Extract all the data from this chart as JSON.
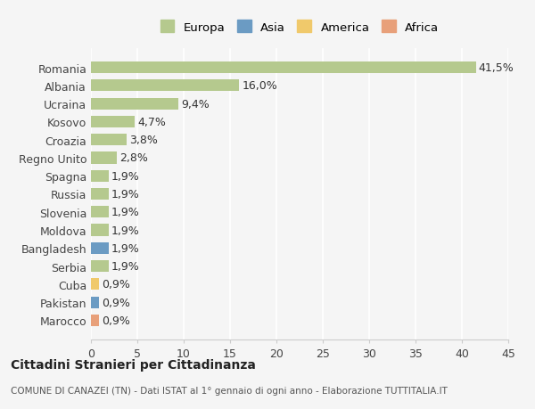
{
  "countries": [
    "Romania",
    "Albania",
    "Ucraina",
    "Kosovo",
    "Croazia",
    "Regno Unito",
    "Spagna",
    "Russia",
    "Slovenia",
    "Moldova",
    "Bangladesh",
    "Serbia",
    "Cuba",
    "Pakistan",
    "Marocco"
  ],
  "values": [
    41.5,
    16.0,
    9.4,
    4.7,
    3.8,
    2.8,
    1.9,
    1.9,
    1.9,
    1.9,
    1.9,
    1.9,
    0.9,
    0.9,
    0.9
  ],
  "continents": [
    "Europa",
    "Europa",
    "Europa",
    "Europa",
    "Europa",
    "Europa",
    "Europa",
    "Europa",
    "Europa",
    "Europa",
    "Asia",
    "Europa",
    "America",
    "Asia",
    "Africa"
  ],
  "continent_colors": {
    "Europa": "#b5c98e",
    "Asia": "#6b9bc3",
    "America": "#f0c96b",
    "Africa": "#e8a07a"
  },
  "labels": [
    "41,5%",
    "16,0%",
    "9,4%",
    "4,7%",
    "3,8%",
    "2,8%",
    "1,9%",
    "1,9%",
    "1,9%",
    "1,9%",
    "1,9%",
    "1,9%",
    "0,9%",
    "0,9%",
    "0,9%"
  ],
  "xlim": [
    0,
    45
  ],
  "xticks": [
    0,
    5,
    10,
    15,
    20,
    25,
    30,
    35,
    40,
    45
  ],
  "title": "Cittadini Stranieri per Cittadinanza",
  "subtitle": "COMUNE DI CANAZEI (TN) - Dati ISTAT al 1° gennaio di ogni anno - Elaborazione TUTTITALIA.IT",
  "legend_entries": [
    "Europa",
    "Asia",
    "America",
    "Africa"
  ],
  "background_color": "#f5f5f5",
  "bar_height": 0.65,
  "label_fontsize": 9,
  "tick_fontsize": 9
}
